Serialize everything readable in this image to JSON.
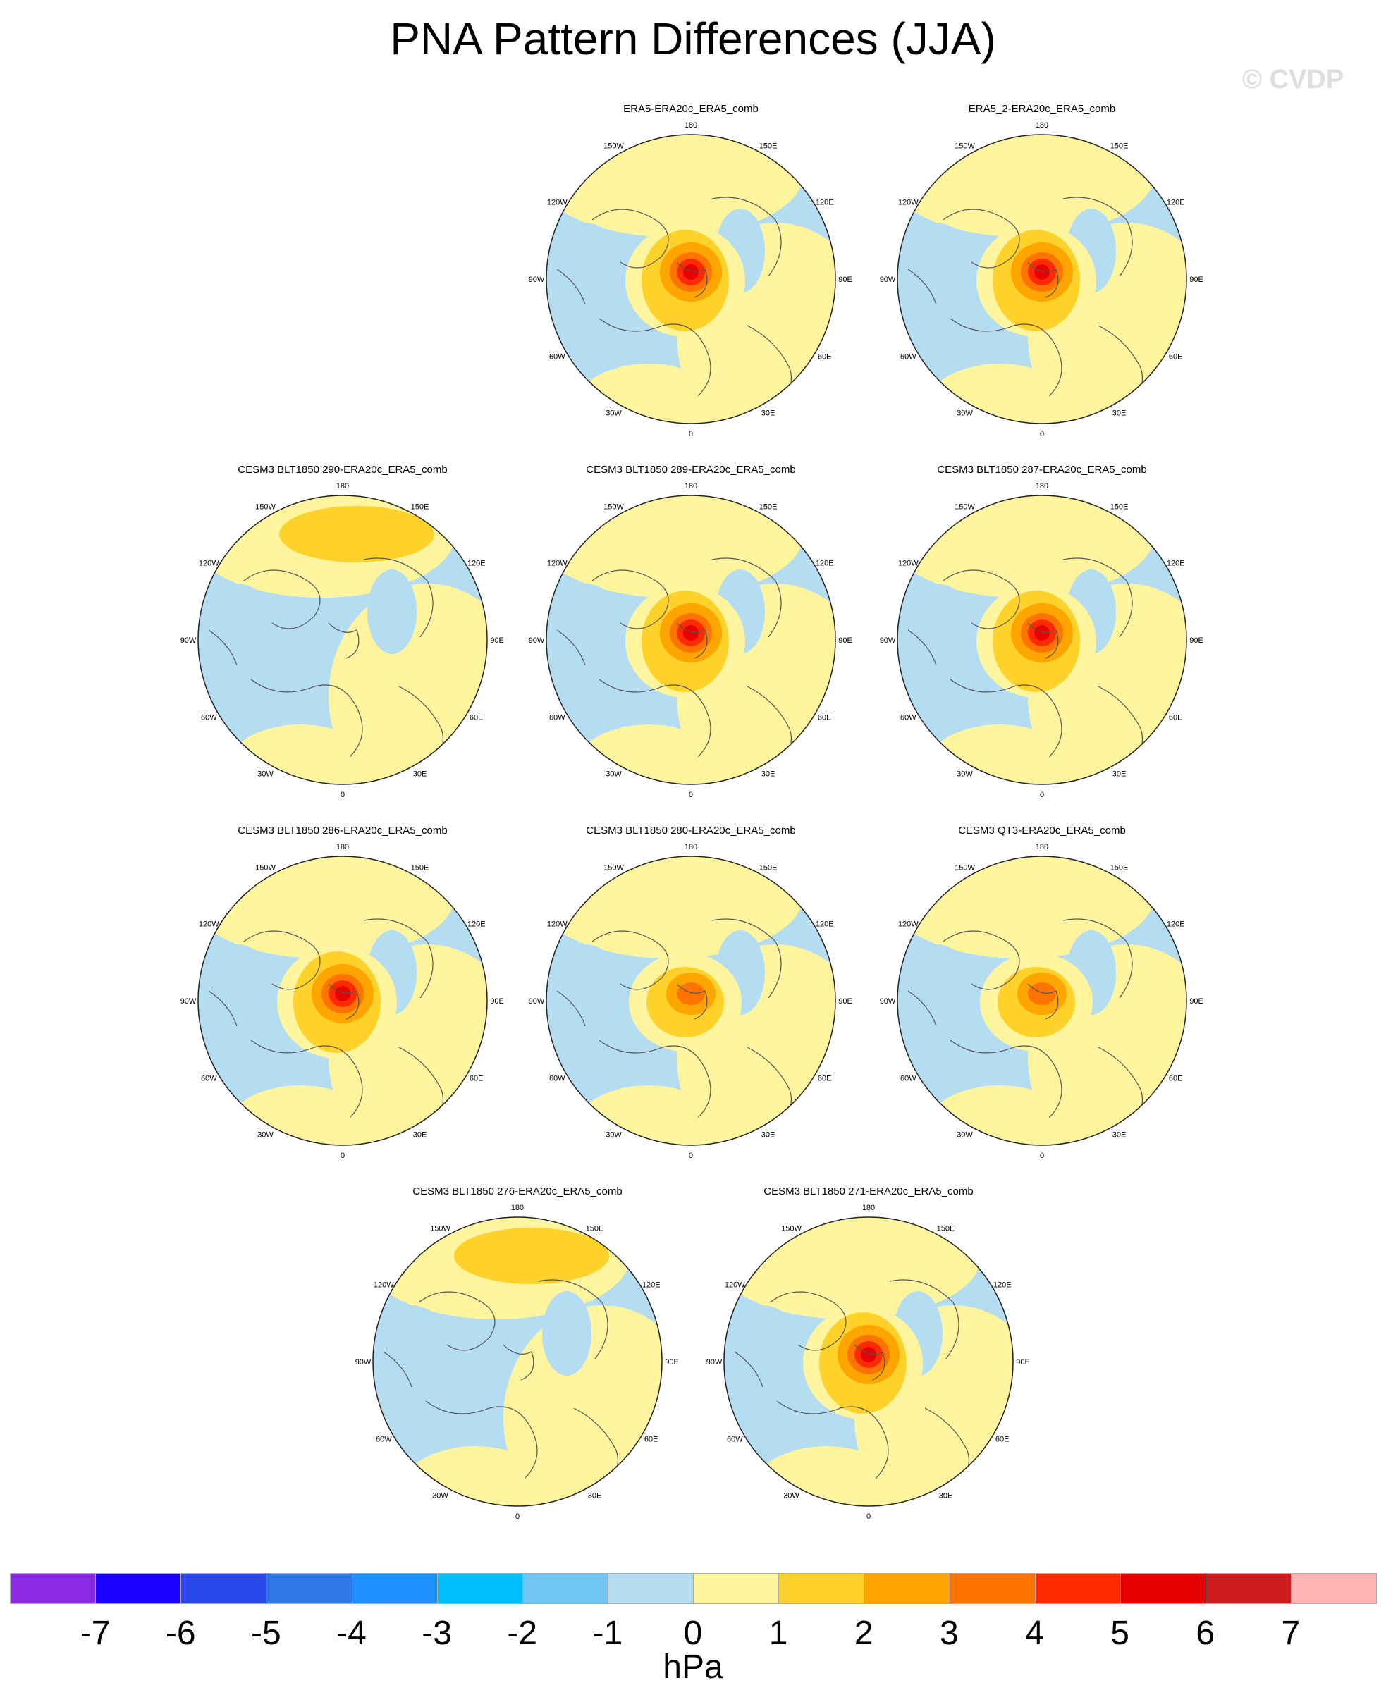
{
  "title": "PNA Pattern Differences (JJA)",
  "watermark": "© CVDP",
  "units": "hPa",
  "colorbar": {
    "labels": [
      "-7",
      "-6",
      "-5",
      "-4",
      "-3",
      "-2",
      "-1",
      "0",
      "1",
      "2",
      "3",
      "4",
      "5",
      "6",
      "7"
    ],
    "colors": [
      "#8a2be2",
      "#1c00ff",
      "#2a48ea",
      "#2e77e4",
      "#1e90ff",
      "#00bfff",
      "#70c5f2",
      "#b4ddf2",
      "#fff59f",
      "#ffd12b",
      "#ffa500",
      "#ff7400",
      "#ff2a00",
      "#e80000",
      "#cc1c1c",
      "#ffb4b4"
    ]
  },
  "panels": [
    {
      "title": "ERA5-ERA20c_ERA5_comb",
      "pattern": "strong"
    },
    {
      "title": "ERA5_2-ERA20c_ERA5_comb",
      "pattern": "strong"
    },
    {
      "title": "CESM3 BLT1850 290-ERA20c_ERA5_comb",
      "pattern": "weak"
    },
    {
      "title": "CESM3 BLT1850 289-ERA20c_ERA5_comb",
      "pattern": "strong"
    },
    {
      "title": "CESM3 BLT1850 287-ERA20c_ERA5_comb",
      "pattern": "strong"
    },
    {
      "title": "CESM3 BLT1850 286-ERA20c_ERA5_comb",
      "pattern": "strong"
    },
    {
      "title": "CESM3 BLT1850 280-ERA20c_ERA5_comb",
      "pattern": "medium"
    },
    {
      "title": "CESM3 QT3-ERA20c_ERA5_comb",
      "pattern": "medium"
    },
    {
      "title": "CESM3 BLT1850 276-ERA20c_ERA5_comb",
      "pattern": "weak"
    },
    {
      "title": "CESM3 BLT1850 271-ERA20c_ERA5_comb",
      "pattern": "strong"
    }
  ],
  "longitude_labels": [
    "180",
    "150E",
    "120E",
    "90E",
    "60E",
    "30E",
    "0",
    "30W",
    "60W",
    "90W",
    "120W",
    "150W"
  ]
}
